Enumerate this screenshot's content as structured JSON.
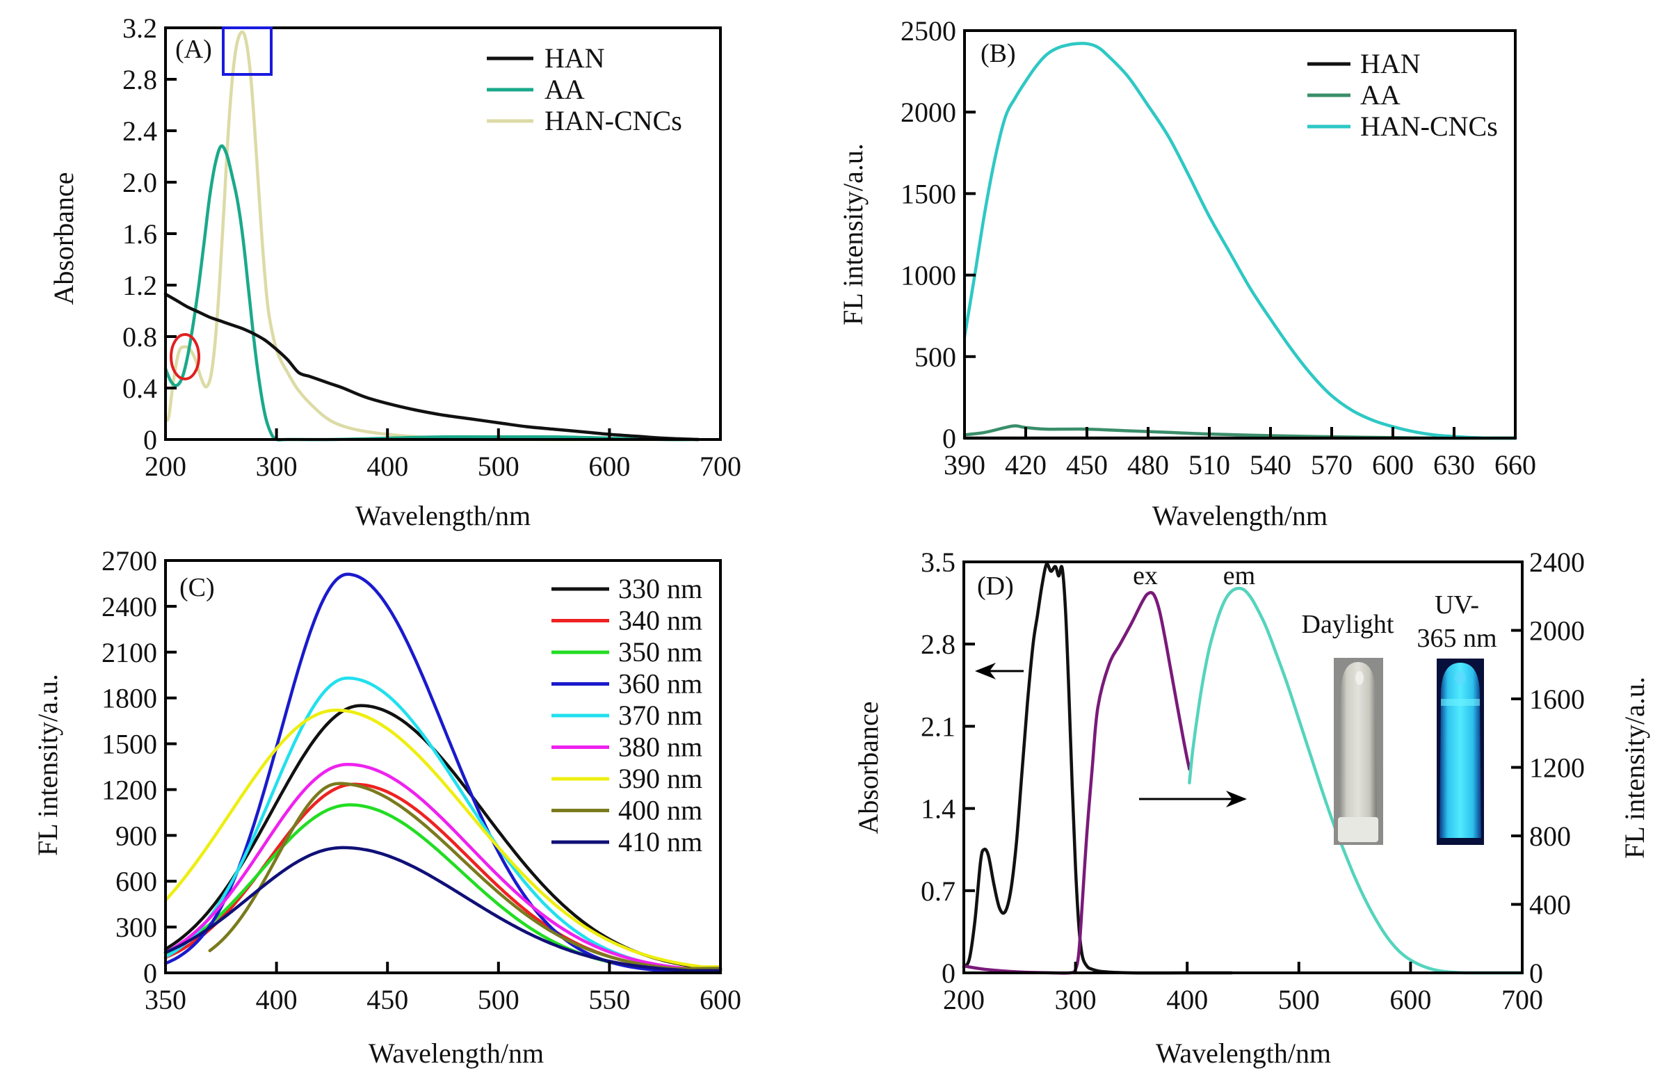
{
  "chart_data": [
    {
      "id": "A",
      "type": "line",
      "panel_label": "(A)",
      "title": "",
      "xlabel": "Wavelength/nm",
      "ylabel": "Absorbance",
      "xlim": [
        200,
        700
      ],
      "ylim": [
        0,
        3.2
      ],
      "xticks": [
        200,
        300,
        400,
        500,
        600,
        700
      ],
      "xtick_labels": [
        "200",
        "300",
        "400",
        "500",
        "600",
        "700"
      ],
      "yticks": [
        0,
        0.4,
        0.8,
        1.2,
        1.6,
        2.0,
        2.4,
        2.8,
        3.2
      ],
      "ytick_labels": [
        "0",
        "0.4",
        "0.8",
        "1.2",
        "1.6",
        "2.0",
        "2.4",
        "2.8",
        "3.2"
      ],
      "grid": false,
      "legend_position": "top-right",
      "series": [
        {
          "name": "HAN",
          "color": "#111111",
          "x": [
            200,
            210,
            220,
            230,
            240,
            250,
            260,
            270,
            280,
            290,
            300,
            310,
            320,
            330,
            340,
            350,
            360,
            380,
            400,
            425,
            450,
            475,
            500,
            525,
            550,
            575,
            600,
            625,
            650,
            680
          ],
          "y": [
            1.13,
            1.08,
            1.03,
            0.99,
            0.95,
            0.92,
            0.89,
            0.86,
            0.82,
            0.77,
            0.7,
            0.62,
            0.52,
            0.49,
            0.46,
            0.43,
            0.4,
            0.33,
            0.28,
            0.23,
            0.19,
            0.16,
            0.13,
            0.1,
            0.08,
            0.06,
            0.04,
            0.025,
            0.01,
            0.0
          ]
        },
        {
          "name": "AA",
          "color": "#1aa98a",
          "x": [
            200,
            205,
            210,
            215,
            220,
            225,
            230,
            235,
            240,
            245,
            250,
            255,
            260,
            265,
            270,
            275,
            280,
            285,
            290,
            295,
            300,
            310,
            350,
            400,
            450,
            500,
            550,
            600,
            650,
            680
          ],
          "y": [
            0.55,
            0.45,
            0.42,
            0.48,
            0.65,
            0.9,
            1.2,
            1.55,
            1.9,
            2.15,
            2.28,
            2.22,
            2.05,
            1.85,
            1.55,
            1.15,
            0.75,
            0.42,
            0.18,
            0.05,
            0.0,
            0.0,
            0.0,
            0.01,
            0.02,
            0.02,
            0.02,
            0.01,
            0.0,
            0.0
          ]
        },
        {
          "name": "HAN-CNCs",
          "color": "#dcdba6",
          "x": [
            200,
            203,
            207,
            212,
            217,
            222,
            227,
            232,
            237,
            242,
            247,
            252,
            257,
            262,
            267,
            272,
            277,
            282,
            287,
            292,
            297,
            302,
            310,
            320,
            335,
            350,
            370,
            400,
            450,
            500,
            600,
            680
          ],
          "y": [
            0.15,
            0.18,
            0.45,
            0.68,
            0.72,
            0.7,
            0.62,
            0.48,
            0.41,
            0.55,
            1.0,
            1.7,
            2.45,
            2.95,
            3.15,
            3.12,
            2.8,
            2.2,
            1.55,
            1.05,
            0.8,
            0.65,
            0.52,
            0.38,
            0.24,
            0.14,
            0.08,
            0.04,
            0.01,
            0.0,
            0.0,
            0.0
          ]
        }
      ],
      "annotations": [
        {
          "type": "rectangle",
          "color": "#1a1ae0",
          "x_range": [
            257,
            290
          ],
          "y_range": [
            2.85,
            3.2
          ],
          "note": "highlights HAN-CNCs peak"
        },
        {
          "type": "ellipse",
          "color": "#e02020",
          "center": [
            218,
            0.65
          ],
          "note": "highlights HAN-CNCs shoulder near 220 nm"
        }
      ]
    },
    {
      "id": "B",
      "type": "line",
      "panel_label": "(B)",
      "title": "",
      "xlabel": "Wavelength/nm",
      "ylabel": "FL intensity/a.u.",
      "xlim": [
        390,
        660
      ],
      "ylim": [
        0,
        2500
      ],
      "xticks": [
        390,
        420,
        450,
        480,
        510,
        540,
        570,
        600,
        630,
        660
      ],
      "xtick_labels": [
        "390",
        "420",
        "450",
        "480",
        "510",
        "540",
        "570",
        "600",
        "630",
        "660"
      ],
      "yticks": [
        0,
        500,
        1000,
        1500,
        2000,
        2500
      ],
      "ytick_labels": [
        "0",
        "500",
        "1000",
        "1500",
        "2000",
        "2500"
      ],
      "grid": false,
      "legend_position": "top-right",
      "series": [
        {
          "name": "HAN",
          "color": "#111111",
          "x": [
            390,
            660
          ],
          "y": [
            0,
            0
          ]
        },
        {
          "name": "AA",
          "color": "#3a8e6a",
          "x": [
            390,
            400,
            410,
            415,
            420,
            430,
            450,
            470,
            490,
            510,
            540,
            570,
            600,
            630,
            660
          ],
          "y": [
            20,
            35,
            65,
            75,
            65,
            55,
            55,
            45,
            35,
            25,
            15,
            8,
            3,
            0,
            0
          ]
        },
        {
          "name": "HAN-CNCs",
          "color": "#2ec8c4",
          "x": [
            390,
            395,
            400,
            405,
            410,
            415,
            420,
            425,
            430,
            435,
            440,
            445,
            450,
            455,
            460,
            470,
            480,
            490,
            500,
            510,
            520,
            530,
            540,
            550,
            560,
            570,
            580,
            590,
            600,
            610,
            620,
            630,
            640,
            650,
            660
          ],
          "y": [
            620,
            1000,
            1390,
            1720,
            1970,
            2090,
            2190,
            2280,
            2350,
            2390,
            2410,
            2420,
            2420,
            2400,
            2350,
            2220,
            2040,
            1850,
            1610,
            1360,
            1140,
            920,
            730,
            550,
            390,
            260,
            170,
            110,
            70,
            40,
            20,
            10,
            3,
            0,
            0
          ]
        }
      ]
    },
    {
      "id": "C",
      "type": "line",
      "panel_label": "(C)",
      "title": "",
      "xlabel": "Wavelength/nm",
      "ylabel": "FL intensity/a.u.",
      "xlim": [
        350,
        600
      ],
      "ylim": [
        0,
        2700
      ],
      "xticks": [
        350,
        400,
        450,
        500,
        550,
        600
      ],
      "xtick_labels": [
        "350",
        "400",
        "450",
        "500",
        "550",
        "600"
      ],
      "yticks": [
        0,
        300,
        600,
        900,
        1200,
        1500,
        1800,
        2100,
        2400,
        2700
      ],
      "ytick_labels": [
        "0",
        "300",
        "600",
        "900",
        "1200",
        "1500",
        "1800",
        "2100",
        "2400",
        "2700"
      ],
      "grid": false,
      "legend_position": "top-right",
      "series": [
        {
          "name": "330 nm",
          "color": "#111111",
          "start": 350,
          "peak_x": 438,
          "peak_y": 1750,
          "end_y": 30,
          "w_left": 40,
          "w_right": 55
        },
        {
          "name": "340 nm",
          "color": "#ee2222",
          "start": 350,
          "peak_x": 435,
          "peak_y": 1235,
          "end_y": 25,
          "w_left": 38,
          "w_right": 52
        },
        {
          "name": "350 nm",
          "color": "#22dd22",
          "start": 350,
          "peak_x": 433,
          "peak_y": 1100,
          "end_y": 20,
          "w_left": 40,
          "w_right": 50
        },
        {
          "name": "360 nm",
          "color": "#1a1acc",
          "start": 350,
          "peak_x": 432,
          "peak_y": 2610,
          "end_y": 20,
          "w_left": 30,
          "w_right": 44
        },
        {
          "name": "370 nm",
          "color": "#22e0ee",
          "start": 350,
          "peak_x": 432,
          "peak_y": 1930,
          "end_y": 30,
          "w_left": 34,
          "w_right": 52
        },
        {
          "name": "380 nm",
          "color": "#ee22ee",
          "start": 350,
          "peak_x": 432,
          "peak_y": 1365,
          "end_y": 30,
          "w_left": 38,
          "w_right": 55
        },
        {
          "name": "390 nm",
          "color": "#eeee11",
          "start": 350,
          "peak_x": 427,
          "peak_y": 1720,
          "end_y": 40,
          "w_left": 48,
          "w_right": 60
        },
        {
          "name": "400 nm",
          "color": "#7a7a1e",
          "start": 370,
          "peak_x": 428,
          "peak_y": 1240,
          "end_y": 30,
          "w_left": 28,
          "w_right": 55
        },
        {
          "name": "410 nm",
          "color": "#101078",
          "start": 350,
          "peak_x": 430,
          "peak_y": 820,
          "end_y": 15,
          "w_left": 42,
          "w_right": 55
        }
      ]
    },
    {
      "id": "D",
      "type": "line",
      "panel_label": "(D)",
      "title": "",
      "xlabel": "Wavelength/nm",
      "ylabel": "Absorbance",
      "y2label": "FL intensity/a.u.",
      "xlim": [
        200,
        700
      ],
      "ylim": [
        0,
        3.5
      ],
      "y2lim": [
        0,
        2400
      ],
      "xticks": [
        200,
        300,
        400,
        500,
        600,
        700
      ],
      "xtick_labels": [
        "200",
        "300",
        "400",
        "500",
        "600",
        "700"
      ],
      "yticks": [
        0,
        0.7,
        1.4,
        2.1,
        2.8,
        3.5
      ],
      "ytick_labels": [
        "0",
        "0.7",
        "1.4",
        "2.1",
        "2.8",
        "3.5"
      ],
      "y2ticks": [
        0,
        400,
        800,
        1200,
        1600,
        2000,
        2400
      ],
      "y2tick_labels": [
        "0",
        "400",
        "800",
        "1200",
        "1600",
        "2000",
        "2400"
      ],
      "grid": false,
      "series": [
        {
          "name": "Absorbance",
          "axis": "left",
          "color": "#111111",
          "x": [
            200,
            205,
            210,
            215,
            218,
            222,
            227,
            232,
            237,
            242,
            247,
            252,
            257,
            262,
            266,
            270,
            274,
            278,
            282,
            285,
            288,
            291,
            294,
            297,
            300,
            303,
            306,
            310,
            315,
            325,
            350,
            400,
            440
          ],
          "y": [
            0.05,
            0.12,
            0.45,
            0.95,
            1.05,
            1.0,
            0.75,
            0.55,
            0.52,
            0.7,
            1.1,
            1.7,
            2.3,
            2.8,
            3.05,
            3.3,
            3.48,
            3.42,
            3.46,
            3.38,
            3.45,
            3.1,
            2.4,
            1.6,
            0.9,
            0.4,
            0.15,
            0.06,
            0.03,
            0.01,
            0.0,
            0.0,
            0.0
          ]
        },
        {
          "name": "ex",
          "axis": "right",
          "color": "#7a1a7a",
          "x": [
            200,
            220,
            250,
            280,
            295,
            300,
            303,
            306,
            310,
            315,
            320,
            330,
            340,
            350,
            360,
            365,
            370,
            375,
            380,
            385,
            390,
            395,
            400,
            402
          ],
          "y": [
            40,
            20,
            5,
            0,
            0,
            20,
            120,
            400,
            800,
            1200,
            1550,
            1800,
            1920,
            2040,
            2170,
            2215,
            2210,
            2120,
            1960,
            1780,
            1600,
            1420,
            1250,
            1190
          ]
        },
        {
          "name": "em",
          "axis": "right",
          "color": "#55d4bd",
          "x": [
            402,
            405,
            410,
            415,
            420,
            425,
            430,
            435,
            440,
            445,
            450,
            455,
            460,
            470,
            480,
            490,
            500,
            510,
            520,
            530,
            540,
            550,
            560,
            570,
            580,
            590,
            600,
            610,
            620,
            630,
            640,
            650,
            660,
            700
          ],
          "y": [
            1110,
            1300,
            1540,
            1740,
            1900,
            2020,
            2120,
            2190,
            2230,
            2245,
            2240,
            2210,
            2160,
            2030,
            1860,
            1680,
            1480,
            1280,
            1080,
            890,
            720,
            560,
            420,
            300,
            200,
            125,
            75,
            42,
            20,
            8,
            3,
            0,
            0,
            0
          ]
        }
      ],
      "annotations": [
        {
          "type": "text",
          "text": "ex"
        },
        {
          "type": "text",
          "text": "em"
        },
        {
          "type": "arrow",
          "direction": "left",
          "meaning": "absorbance curve uses left axis"
        },
        {
          "type": "arrow",
          "direction": "right",
          "meaning": "ex/em curves use right axis"
        }
      ],
      "inset_photos": [
        {
          "label": "Daylight",
          "description": "vial under daylight (pale, translucent)"
        },
        {
          "label_line1": "UV-",
          "label_line2": "365 nm",
          "description": "vial under UV 365 nm (bright blue fluorescence)"
        }
      ]
    }
  ]
}
